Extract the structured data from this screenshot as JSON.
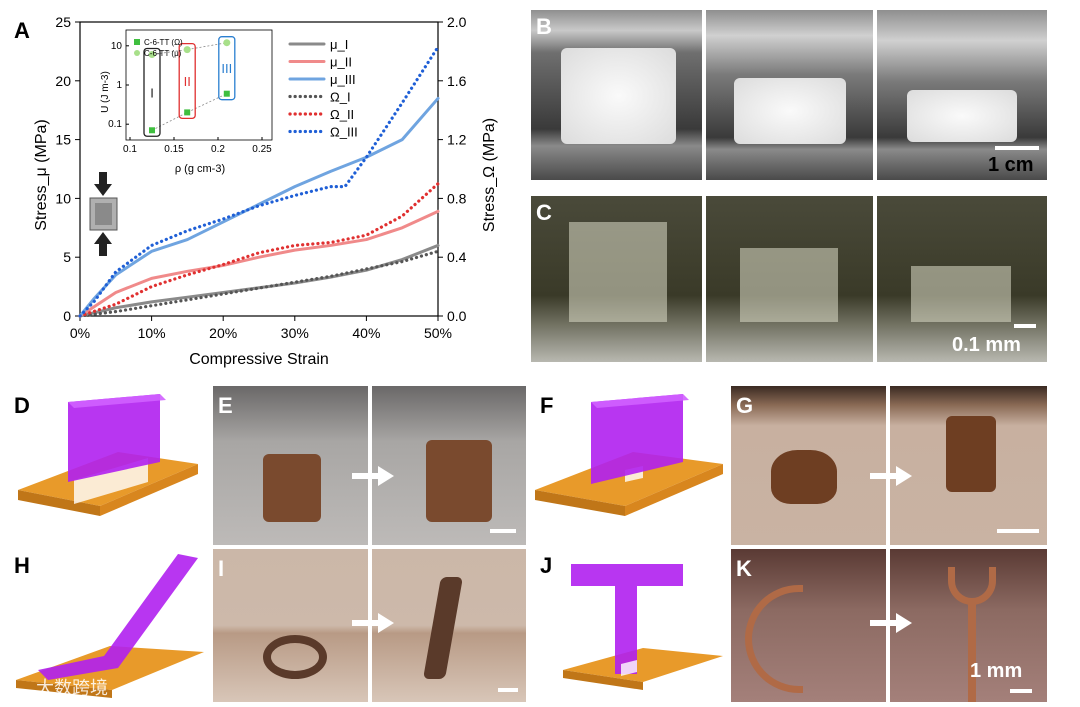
{
  "panels": {
    "A": "A",
    "B": "B",
    "C": "C",
    "D": "D",
    "E": "E",
    "F": "F",
    "G": "G",
    "H": "H",
    "I": "I",
    "J": "J",
    "K": "K"
  },
  "scale_bars": {
    "B": "1 cm",
    "C": "0.1 mm",
    "K": "1 mm"
  },
  "watermark": "大数跨境",
  "colors": {
    "mu_I": "#8a8a8a",
    "mu_II": "#f08a8a",
    "mu_III": "#6fa4e0",
    "omega_I": "#555555",
    "omega_II": "#e03030",
    "omega_III": "#1f5fd6",
    "purple_lattice": "#b020f0",
    "gold_plate": "#e89a2a"
  },
  "chart_data": {
    "type": "line",
    "xlabel": "Compressive Strain",
    "ylabel_left": "Stress_μ (MPa)",
    "ylabel_right": "Stress_Ω (MPa)",
    "xlim": [
      0,
      0.5
    ],
    "ylim_left": [
      0,
      25
    ],
    "ylim_right": [
      0,
      2.0
    ],
    "x_ticks": [
      "0%",
      "10%",
      "20%",
      "30%",
      "40%",
      "50%"
    ],
    "y_ticks_left": [
      "0",
      "5",
      "10",
      "15",
      "20",
      "25"
    ],
    "y_ticks_right": [
      "0.0",
      "0.4",
      "0.8",
      "1.2",
      "1.6",
      "2.0"
    ],
    "legend_position": "right",
    "series": [
      {
        "name": "μ_I",
        "axis": "left",
        "style": "solid",
        "color": "#8a8a8a",
        "x": [
          0,
          0.05,
          0.1,
          0.15,
          0.2,
          0.25,
          0.3,
          0.35,
          0.4,
          0.45,
          0.5
        ],
        "y": [
          0,
          0.7,
          1.2,
          1.6,
          2.0,
          2.4,
          2.8,
          3.3,
          3.9,
          4.8,
          6.0
        ]
      },
      {
        "name": "μ_II",
        "axis": "left",
        "style": "solid",
        "color": "#f08a8a",
        "x": [
          0,
          0.05,
          0.1,
          0.15,
          0.2,
          0.25,
          0.3,
          0.35,
          0.4,
          0.45,
          0.5
        ],
        "y": [
          0,
          2.0,
          3.2,
          3.8,
          4.3,
          5.0,
          5.6,
          6.0,
          6.5,
          7.5,
          8.9
        ]
      },
      {
        "name": "μ_III",
        "axis": "left",
        "style": "solid",
        "color": "#6fa4e0",
        "x": [
          0,
          0.02,
          0.05,
          0.1,
          0.15,
          0.2,
          0.25,
          0.3,
          0.35,
          0.4,
          0.45,
          0.5
        ],
        "y": [
          0,
          1.5,
          3.5,
          5.5,
          6.5,
          8.0,
          9.5,
          11.0,
          12.3,
          13.5,
          15.0,
          18.5
        ]
      },
      {
        "name": "Ω_I",
        "axis": "right",
        "style": "dotted",
        "color": "#555555",
        "x": [
          0,
          0.05,
          0.1,
          0.15,
          0.2,
          0.25,
          0.3,
          0.35,
          0.4,
          0.45,
          0.5
        ],
        "y": [
          0,
          0.03,
          0.07,
          0.11,
          0.15,
          0.19,
          0.23,
          0.27,
          0.32,
          0.37,
          0.44
        ]
      },
      {
        "name": "Ω_II",
        "axis": "right",
        "style": "dotted",
        "color": "#e03030",
        "x": [
          0,
          0.05,
          0.1,
          0.15,
          0.2,
          0.25,
          0.3,
          0.35,
          0.4,
          0.45,
          0.5
        ],
        "y": [
          0,
          0.08,
          0.2,
          0.28,
          0.35,
          0.43,
          0.48,
          0.5,
          0.55,
          0.68,
          0.9
        ]
      },
      {
        "name": "Ω_III",
        "axis": "right",
        "style": "dotted",
        "color": "#1f5fd6",
        "x": [
          0,
          0.02,
          0.05,
          0.1,
          0.15,
          0.2,
          0.25,
          0.3,
          0.35,
          0.37,
          0.4,
          0.45,
          0.5
        ],
        "y": [
          0,
          0.1,
          0.3,
          0.48,
          0.58,
          0.66,
          0.75,
          0.82,
          0.88,
          0.88,
          1.08,
          1.45,
          1.83
        ]
      }
    ],
    "inset": {
      "type": "scatter",
      "xlabel": "ρ (g cm-3)",
      "ylabel": "U (J m-3)",
      "x_ticks": [
        "0.1",
        "0.15",
        "0.2",
        "0.25"
      ],
      "y_ticks": [
        "0.1",
        "1",
        "10"
      ],
      "xlim": [
        0.1,
        0.25
      ],
      "ylog": true,
      "ylim": [
        0.05,
        20
      ],
      "legend": [
        "C-6-TT (Ω)",
        "C-6-TT (μ)"
      ],
      "groups": [
        {
          "label": "I",
          "color": "#222222",
          "x": 0.125,
          "omega": 0.07,
          "mu": 6.0
        },
        {
          "label": "II",
          "color": "#e03030",
          "x": 0.165,
          "omega": 0.2,
          "mu": 8.0
        },
        {
          "label": "III",
          "color": "#2a7fd0",
          "x": 0.21,
          "omega": 0.6,
          "mu": 12.0
        }
      ]
    }
  }
}
